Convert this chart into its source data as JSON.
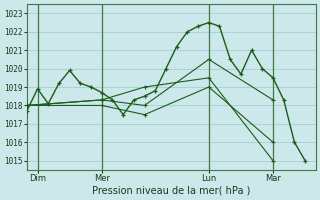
{
  "background_color": "#cce8ea",
  "grid_color": "#99cccc",
  "line_color": "#1a5c1a",
  "xlabel": "Pression niveau de la mer( hPa )",
  "ylim": [
    1014.5,
    1023.5
  ],
  "yticks": [
    1015,
    1016,
    1017,
    1018,
    1019,
    1020,
    1021,
    1022,
    1023
  ],
  "xtick_labels": [
    "Dim",
    "Mer",
    "Lun",
    "Mar"
  ],
  "xtick_positions": [
    1,
    4,
    9,
    12
  ],
  "vline_positions": [
    1,
    4,
    9,
    12
  ],
  "xlim": [
    0.5,
    14.0
  ],
  "lines": [
    [
      0.5,
      1017.7,
      1.0,
      1018.9,
      1.5,
      1018.1,
      2.0,
      1019.2,
      2.5,
      1019.9,
      3.0,
      1019.2,
      3.5,
      1019.0,
      4.0,
      1018.7,
      4.5,
      1018.3,
      5.0,
      1017.5,
      5.5,
      1018.3,
      6.0,
      1018.5,
      6.5,
      1018.8,
      7.0,
      1020.0,
      7.5,
      1021.2,
      8.0,
      1022.0,
      8.5,
      1022.3,
      9.0,
      1022.5,
      9.5,
      1022.3,
      10.0,
      1020.5,
      10.5,
      1019.7,
      11.0,
      1021.0,
      11.5,
      1020.0,
      12.0,
      1019.5,
      12.5,
      1018.3,
      13.0,
      1016.0,
      13.5,
      1015.0
    ],
    [
      0.5,
      1018.0,
      4.0,
      1018.3,
      6.0,
      1019.0,
      9.0,
      1019.5,
      12.0,
      1015.0
    ],
    [
      0.5,
      1018.0,
      4.0,
      1018.3,
      6.0,
      1018.0,
      9.0,
      1020.5,
      12.0,
      1018.3
    ],
    [
      0.5,
      1018.0,
      4.0,
      1018.0,
      6.0,
      1017.5,
      9.0,
      1019.0,
      12.0,
      1016.0
    ]
  ]
}
